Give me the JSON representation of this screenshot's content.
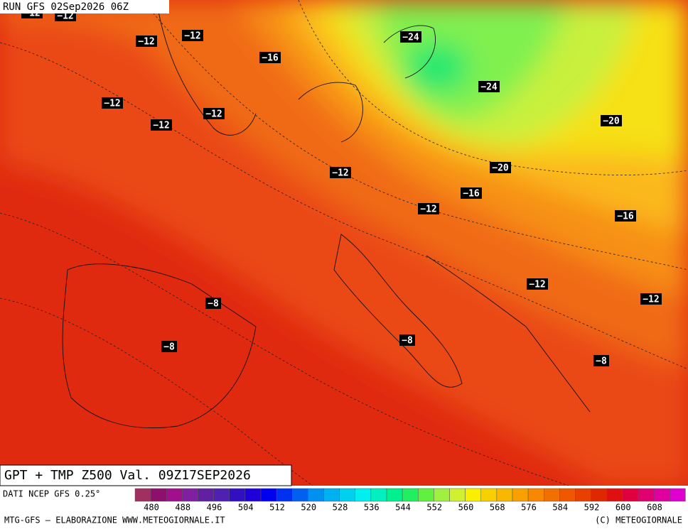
{
  "header": {
    "run": "RUN GFS 02Sep2026 06Z"
  },
  "title": "GPT + TMP Z500 Val. 09Z17SEP2026",
  "source": "DATI NCEP GFS 0.25°",
  "colorbar": {
    "labels": [
      480,
      488,
      496,
      504,
      512,
      520,
      528,
      536,
      544,
      552,
      560,
      568,
      576,
      584,
      592,
      600,
      608
    ],
    "colors": [
      "#a03060",
      "#8c106c",
      "#a0108c",
      "#8020a0",
      "#6020a0",
      "#5020b0",
      "#3010c0",
      "#2000d8",
      "#0000f0",
      "#0030f0",
      "#0060f0",
      "#0090f0",
      "#00b0f0",
      "#00d0f0",
      "#00f0f0",
      "#00f0c0",
      "#00f090",
      "#20f060",
      "#60f040",
      "#a0f040",
      "#d0f030",
      "#f8f000",
      "#f8d000",
      "#f8b800",
      "#f8a000",
      "#f88800",
      "#f07000",
      "#f05800",
      "#e84000",
      "#e02800",
      "#e01010",
      "#e00040",
      "#e00070",
      "#e000a0",
      "#e000d0"
    ]
  },
  "temperature_labels": [
    "−12",
    "−12",
    "−12",
    "−12",
    "−16",
    "−12",
    "−12",
    "−12",
    "−12",
    "−12",
    "−12",
    "−12",
    "−24",
    "−24",
    "−20",
    "−20",
    "−16",
    "−16",
    "−8",
    "−8",
    "−8",
    "−8"
  ],
  "footer": {
    "left": "MTG-GFS — ELABORAZIONE WWW.METEOGIORNALE.IT",
    "right": "(C) METEOGIORNALE"
  }
}
